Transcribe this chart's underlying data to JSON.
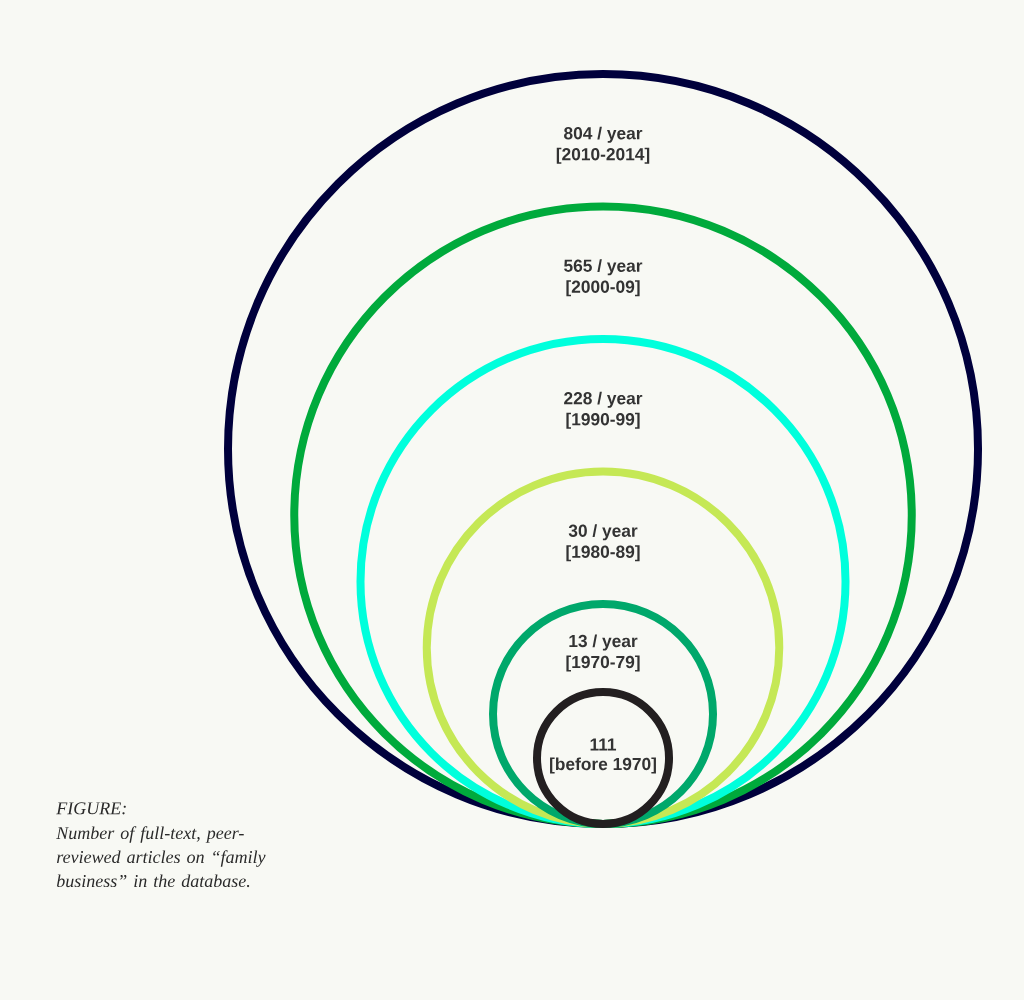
{
  "chart_data": {
    "type": "other",
    "title": "FIGURE:",
    "subtitle": "Number of full-text, peer-reviewed articles on “family business” in the database.",
    "categories": [
      "[2010-2014]",
      "[2000-09]",
      "[1990-99]",
      "[1980-89]",
      "[1970-79]",
      "[before 1970]"
    ],
    "values": [
      804,
      565,
      228,
      30,
      13,
      111
    ],
    "value_labels": [
      "804 / year",
      "565 / year",
      "228 / year",
      "30 / year",
      "13 / year",
      "111"
    ],
    "colors": [
      "#00003c",
      "#00aa3c",
      "#00ffdc",
      "#c5e855",
      "#00a86b",
      "#231f20"
    ]
  }
}
